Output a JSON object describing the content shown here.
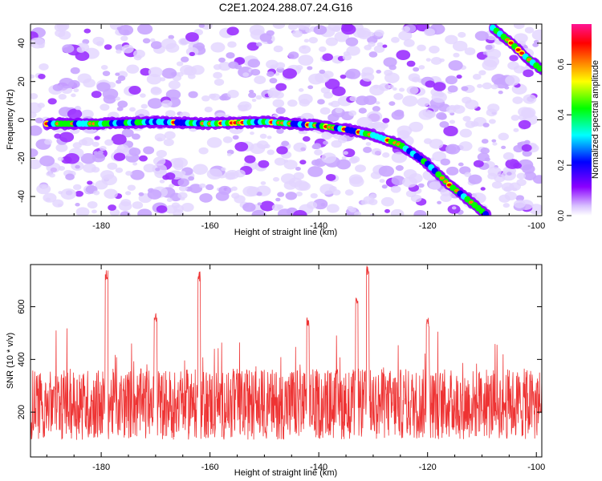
{
  "title": "C2E1.2024.288.07.24.G16",
  "chart_data": [
    {
      "type": "heatmap",
      "xlabel": "Height of straight line (km)",
      "ylabel": "Frequency (Hz)",
      "xlim": [
        -193,
        -99
      ],
      "ylim": [
        -50,
        50
      ],
      "xticks": [
        -180,
        -160,
        -140,
        -120,
        -100
      ],
      "yticks": [
        -40,
        -20,
        0,
        20,
        40
      ],
      "colorbar": {
        "label": "Normalized spectral amplitude",
        "range": [
          0,
          0.76
        ],
        "ticks": [
          0.0,
          0.2,
          0.4,
          0.6
        ],
        "colormap": [
          "#ffffff",
          "#d9c2ff",
          "#8b00ff",
          "#0000ff",
          "#00ffff",
          "#00ff00",
          "#ffff00",
          "#ff8000",
          "#ff0000",
          "#ff1493"
        ]
      },
      "ridge": [
        {
          "x": -190,
          "f": -2
        },
        {
          "x": -180,
          "f": -2
        },
        {
          "x": -170,
          "f": -1
        },
        {
          "x": -160,
          "f": -2
        },
        {
          "x": -150,
          "f": -1
        },
        {
          "x": -140,
          "f": -3
        },
        {
          "x": -135,
          "f": -5
        },
        {
          "x": -130,
          "f": -8
        },
        {
          "x": -125,
          "f": -13
        },
        {
          "x": -120,
          "f": -23
        },
        {
          "x": -116,
          "f": -34
        },
        {
          "x": -112,
          "f": -43
        },
        {
          "x": -109,
          "f": -50
        }
      ],
      "ridge_upper": [
        {
          "x": -108,
          "f": 48
        },
        {
          "x": -105,
          "f": 41
        },
        {
          "x": -102,
          "f": 33
        },
        {
          "x": -99,
          "f": 26
        }
      ]
    },
    {
      "type": "line",
      "xlabel": "Height of straight line (km)",
      "ylabel": "SNR (10 * v/v)",
      "xlim": [
        -193,
        -99
      ],
      "ylim": [
        30,
        760
      ],
      "xticks": [
        -180,
        -160,
        -140,
        -120,
        -100
      ],
      "yticks": [
        200,
        400,
        600
      ],
      "series": [
        {
          "color": "#ee3333",
          "baseline": 230,
          "noise_spread": 150,
          "peaks": [
            {
              "x": -179,
              "y": 740
            },
            {
              "x": -162,
              "y": 735
            },
            {
              "x": -131,
              "y": 760
            },
            {
              "x": -133,
              "y": 650
            },
            {
              "x": -120,
              "y": 560
            },
            {
              "x": -142,
              "y": 560
            },
            {
              "x": -170,
              "y": 580
            }
          ]
        }
      ]
    }
  ]
}
